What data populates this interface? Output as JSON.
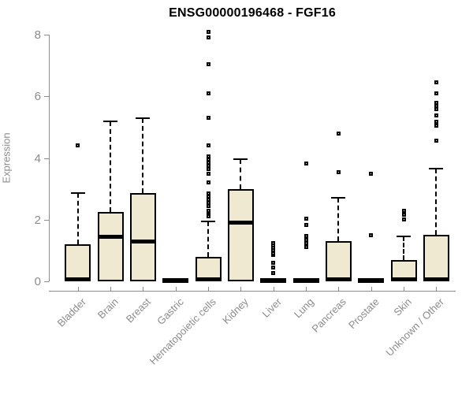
{
  "chart_data": {
    "type": "boxplot",
    "title": "ENSG00000196468 - FGF16",
    "xlabel": "",
    "ylabel": "Expression",
    "ylim": [
      0,
      8
    ],
    "yticks": [
      0,
      2,
      4,
      6,
      8
    ],
    "grid": false,
    "legend": "none",
    "categories": [
      "Bladder",
      "Brain",
      "Breast",
      "Gastric",
      "Hematopoietic cells",
      "Kidney",
      "Liver",
      "Lung",
      "Pancreas",
      "Prostate",
      "Skin",
      "Unknown / Other"
    ],
    "boxes": [
      {
        "category": "Bladder",
        "q1": 0,
        "median": 0.07,
        "q3": 1.2,
        "whisker_low": 0,
        "whisker_high": 2.85,
        "outliers": [
          4.4
        ]
      },
      {
        "category": "Brain",
        "q1": 0,
        "median": 1.45,
        "q3": 2.25,
        "whisker_low": 0,
        "whisker_high": 5.2,
        "outliers": []
      },
      {
        "category": "Breast",
        "q1": 0,
        "median": 1.3,
        "q3": 2.85,
        "whisker_low": 0,
        "whisker_high": 5.3,
        "outliers": []
      },
      {
        "category": "Gastric",
        "q1": 0,
        "median": 0.03,
        "q3": 0.06,
        "whisker_low": 0,
        "whisker_high": 0.06,
        "outliers": []
      },
      {
        "category": "Hematopoietic cells",
        "q1": 0,
        "median": 0.07,
        "q3": 0.78,
        "whisker_low": 0,
        "whisker_high": 1.95,
        "outliers": [
          2.12,
          2.18,
          2.24,
          2.3,
          2.45,
          2.55,
          2.65,
          2.75,
          2.85,
          3.2,
          3.5,
          3.65,
          3.75,
          3.85,
          3.95,
          4.05,
          4.4,
          5.3,
          6.1,
          7.05,
          7.9,
          8.1
        ]
      },
      {
        "category": "Kidney",
        "q1": 0,
        "median": 1.9,
        "q3": 3.0,
        "whisker_low": 0,
        "whisker_high": 3.95,
        "outliers": []
      },
      {
        "category": "Liver",
        "q1": 0,
        "median": 0.03,
        "q3": 0.06,
        "whisker_low": 0,
        "whisker_high": 0.06,
        "outliers": [
          0.26,
          0.45,
          0.61,
          0.85,
          0.92,
          1.0,
          1.09,
          1.17,
          1.25
        ]
      },
      {
        "category": "Lung",
        "q1": 0,
        "median": 0.03,
        "q3": 0.06,
        "whisker_low": 0,
        "whisker_high": 0.06,
        "outliers": [
          1.12,
          1.24,
          1.35,
          1.46,
          1.84,
          2.02,
          3.82
        ]
      },
      {
        "category": "Pancreas",
        "q1": 0,
        "median": 0.07,
        "q3": 1.3,
        "whisker_low": 0,
        "whisker_high": 2.7,
        "outliers": [
          3.55,
          4.8
        ]
      },
      {
        "category": "Prostate",
        "q1": 0,
        "median": 0.03,
        "q3": 0.06,
        "whisker_low": 0,
        "whisker_high": 0.06,
        "outliers": [
          1.49,
          3.5
        ]
      },
      {
        "category": "Skin",
        "q1": 0,
        "median": 0.07,
        "q3": 0.7,
        "whisker_low": 0,
        "whisker_high": 1.45,
        "outliers": [
          2.0,
          2.15,
          2.28
        ]
      },
      {
        "category": "Unknown / Other",
        "q1": 0,
        "median": 0.07,
        "q3": 1.5,
        "whisker_low": 0,
        "whisker_high": 3.65,
        "outliers": [
          4.55,
          5.05,
          5.17,
          5.37,
          5.58,
          5.68,
          5.78,
          6.1,
          6.45
        ]
      }
    ],
    "style": {
      "box_fill": "#F0E9D2",
      "box_border": "#000000",
      "median_color": "#000000",
      "whisker_color": "#000000",
      "axis_color": "#8C8C8C",
      "tick_label_color": "#8C8C8C",
      "title_color": "#000000"
    }
  }
}
